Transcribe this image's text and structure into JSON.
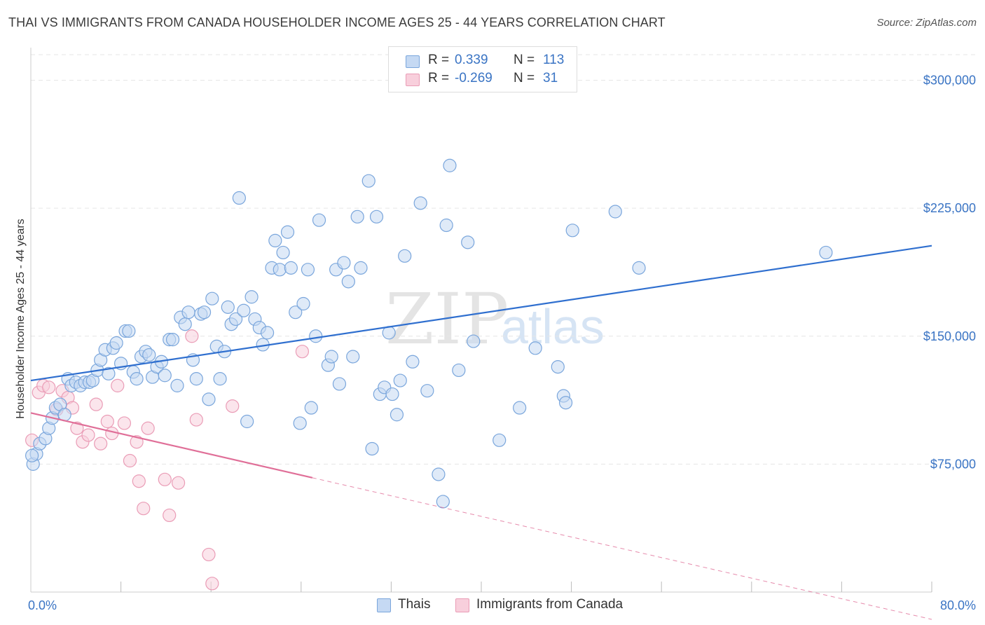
{
  "header": {
    "title": "THAI VS IMMIGRANTS FROM CANADA HOUSEHOLDER INCOME AGES 25 - 44 YEARS CORRELATION CHART",
    "source": "Source: ZipAtlas.com"
  },
  "legend": {
    "rows": [
      {
        "r_label": "R =",
        "r_value": " 0.339",
        "n_label": "N =",
        "n_value": "113"
      },
      {
        "r_label": "R =",
        "r_value": "-0.269",
        "n_label": "N =",
        "n_value": " 31"
      }
    ],
    "bottom": [
      "Thais",
      "Immigrants from Canada"
    ]
  },
  "colors": {
    "thai_fill": "#c5d9f3",
    "thai_stroke": "#7aa6dc",
    "thai_line": "#2f6fcf",
    "canada_fill": "#f8cfdc",
    "canada_stroke": "#ea9cb6",
    "canada_line": "#e06f98"
  },
  "chart_data": {
    "type": "scatter",
    "title": "THAI VS IMMIGRANTS FROM CANADA HOUSEHOLDER INCOME AGES 25 - 44 YEARS CORRELATION CHART",
    "xlabel": "",
    "ylabel": "Householder Income Ages 25 - 44 years",
    "xlim": [
      0,
      80
    ],
    "ylim": [
      0,
      315000
    ],
    "x_tick_labels": [
      "0.0%",
      "80.0%"
    ],
    "y_ticks": [
      75000,
      150000,
      225000,
      300000
    ],
    "y_tick_labels": [
      "$75,000",
      "$150,000",
      "$225,000",
      "$300,000"
    ],
    "grid": true,
    "legend_position": "top-center",
    "series": [
      {
        "name": "Thais",
        "r": 0.339,
        "n": 113,
        "trend": {
          "x": [
            0,
            80
          ],
          "y": [
            124000,
            203000
          ]
        },
        "points": [
          [
            0.2,
            75000
          ],
          [
            0.5,
            81000
          ],
          [
            0.8,
            87000
          ],
          [
            1.3,
            90000
          ],
          [
            1.6,
            96000
          ],
          [
            1.9,
            102000
          ],
          [
            2.2,
            108000
          ],
          [
            2.6,
            110000
          ],
          [
            3.0,
            104000
          ],
          [
            3.3,
            125000
          ],
          [
            3.6,
            121000
          ],
          [
            4.0,
            123000
          ],
          [
            4.4,
            121000
          ],
          [
            4.8,
            123000
          ],
          [
            5.2,
            123000
          ],
          [
            5.5,
            124000
          ],
          [
            5.9,
            130000
          ],
          [
            6.2,
            136000
          ],
          [
            6.6,
            142000
          ],
          [
            6.9,
            128000
          ],
          [
            7.3,
            143000
          ],
          [
            7.6,
            146000
          ],
          [
            8.0,
            134000
          ],
          [
            8.4,
            153000
          ],
          [
            8.7,
            153000
          ],
          [
            9.1,
            129000
          ],
          [
            9.4,
            125000
          ],
          [
            9.8,
            138000
          ],
          [
            10.2,
            141000
          ],
          [
            10.5,
            139000
          ],
          [
            10.8,
            126000
          ],
          [
            11.2,
            132000
          ],
          [
            11.6,
            135000
          ],
          [
            11.9,
            127000
          ],
          [
            12.3,
            148000
          ],
          [
            12.6,
            148000
          ],
          [
            13.0,
            121000
          ],
          [
            13.3,
            161000
          ],
          [
            13.7,
            157000
          ],
          [
            14.0,
            164000
          ],
          [
            14.4,
            136000
          ],
          [
            14.7,
            125000
          ],
          [
            15.1,
            163000
          ],
          [
            15.4,
            164000
          ],
          [
            15.8,
            113000
          ],
          [
            16.1,
            172000
          ],
          [
            16.5,
            144000
          ],
          [
            16.8,
            125000
          ],
          [
            17.2,
            141000
          ],
          [
            17.5,
            167000
          ],
          [
            17.8,
            157000
          ],
          [
            18.2,
            160000
          ],
          [
            18.5,
            231000
          ],
          [
            18.9,
            165000
          ],
          [
            19.2,
            100000
          ],
          [
            19.6,
            173000
          ],
          [
            19.9,
            160000
          ],
          [
            20.3,
            155000
          ],
          [
            20.6,
            145000
          ],
          [
            21.0,
            152000
          ],
          [
            21.4,
            190000
          ],
          [
            21.7,
            206000
          ],
          [
            22.1,
            189000
          ],
          [
            22.4,
            199000
          ],
          [
            22.8,
            211000
          ],
          [
            23.1,
            190000
          ],
          [
            23.5,
            164000
          ],
          [
            23.9,
            99000
          ],
          [
            24.2,
            169000
          ],
          [
            24.6,
            189000
          ],
          [
            24.9,
            108000
          ],
          [
            25.3,
            150000
          ],
          [
            25.6,
            218000
          ],
          [
            26.4,
            133000
          ],
          [
            26.7,
            138000
          ],
          [
            27.1,
            189000
          ],
          [
            27.4,
            122000
          ],
          [
            27.8,
            193000
          ],
          [
            28.2,
            182000
          ],
          [
            28.6,
            138000
          ],
          [
            29.0,
            220000
          ],
          [
            29.3,
            190000
          ],
          [
            30.0,
            241000
          ],
          [
            30.3,
            84000
          ],
          [
            30.7,
            220000
          ],
          [
            31.0,
            116000
          ],
          [
            31.4,
            120000
          ],
          [
            31.8,
            152000
          ],
          [
            32.1,
            116000
          ],
          [
            32.5,
            104000
          ],
          [
            32.8,
            124000
          ],
          [
            33.2,
            197000
          ],
          [
            33.9,
            135000
          ],
          [
            34.6,
            228000
          ],
          [
            35.2,
            118000
          ],
          [
            36.2,
            69000
          ],
          [
            36.6,
            53000
          ],
          [
            36.9,
            215000
          ],
          [
            37.2,
            250000
          ],
          [
            38.0,
            130000
          ],
          [
            38.8,
            205000
          ],
          [
            39.3,
            147000
          ],
          [
            41.6,
            89000
          ],
          [
            43.4,
            108000
          ],
          [
            44.8,
            143000
          ],
          [
            46.8,
            132000
          ],
          [
            47.3,
            115000
          ],
          [
            47.5,
            111000
          ],
          [
            48.1,
            212000
          ],
          [
            51.9,
            223000
          ],
          [
            54.0,
            190000
          ],
          [
            70.6,
            199000
          ],
          [
            0.1,
            80000
          ]
        ]
      },
      {
        "name": "Immigrants from Canada",
        "r": -0.269,
        "n": 31,
        "trend": {
          "x": [
            0,
            25
          ],
          "y": [
            105000,
            67000
          ]
        },
        "trend_dashed": {
          "x": [
            25,
            80
          ],
          "y": [
            67000,
            -16000
          ]
        },
        "points": [
          [
            0.1,
            89000
          ],
          [
            0.7,
            117000
          ],
          [
            1.1,
            121000
          ],
          [
            1.6,
            120000
          ],
          [
            2.3,
            107000
          ],
          [
            2.8,
            118000
          ],
          [
            3.3,
            114000
          ],
          [
            3.7,
            108000
          ],
          [
            4.1,
            96000
          ],
          [
            4.6,
            88000
          ],
          [
            5.1,
            92000
          ],
          [
            5.8,
            110000
          ],
          [
            6.2,
            87000
          ],
          [
            6.8,
            100000
          ],
          [
            7.2,
            93000
          ],
          [
            7.7,
            121000
          ],
          [
            8.3,
            99000
          ],
          [
            8.8,
            77000
          ],
          [
            9.4,
            88000
          ],
          [
            9.6,
            65000
          ],
          [
            10.0,
            49000
          ],
          [
            10.4,
            96000
          ],
          [
            11.9,
            66000
          ],
          [
            12.3,
            45000
          ],
          [
            13.1,
            64000
          ],
          [
            14.3,
            150000
          ],
          [
            14.7,
            101000
          ],
          [
            15.8,
            22000
          ],
          [
            16.1,
            5000
          ],
          [
            17.9,
            109000
          ],
          [
            24.1,
            141000
          ]
        ]
      }
    ]
  }
}
